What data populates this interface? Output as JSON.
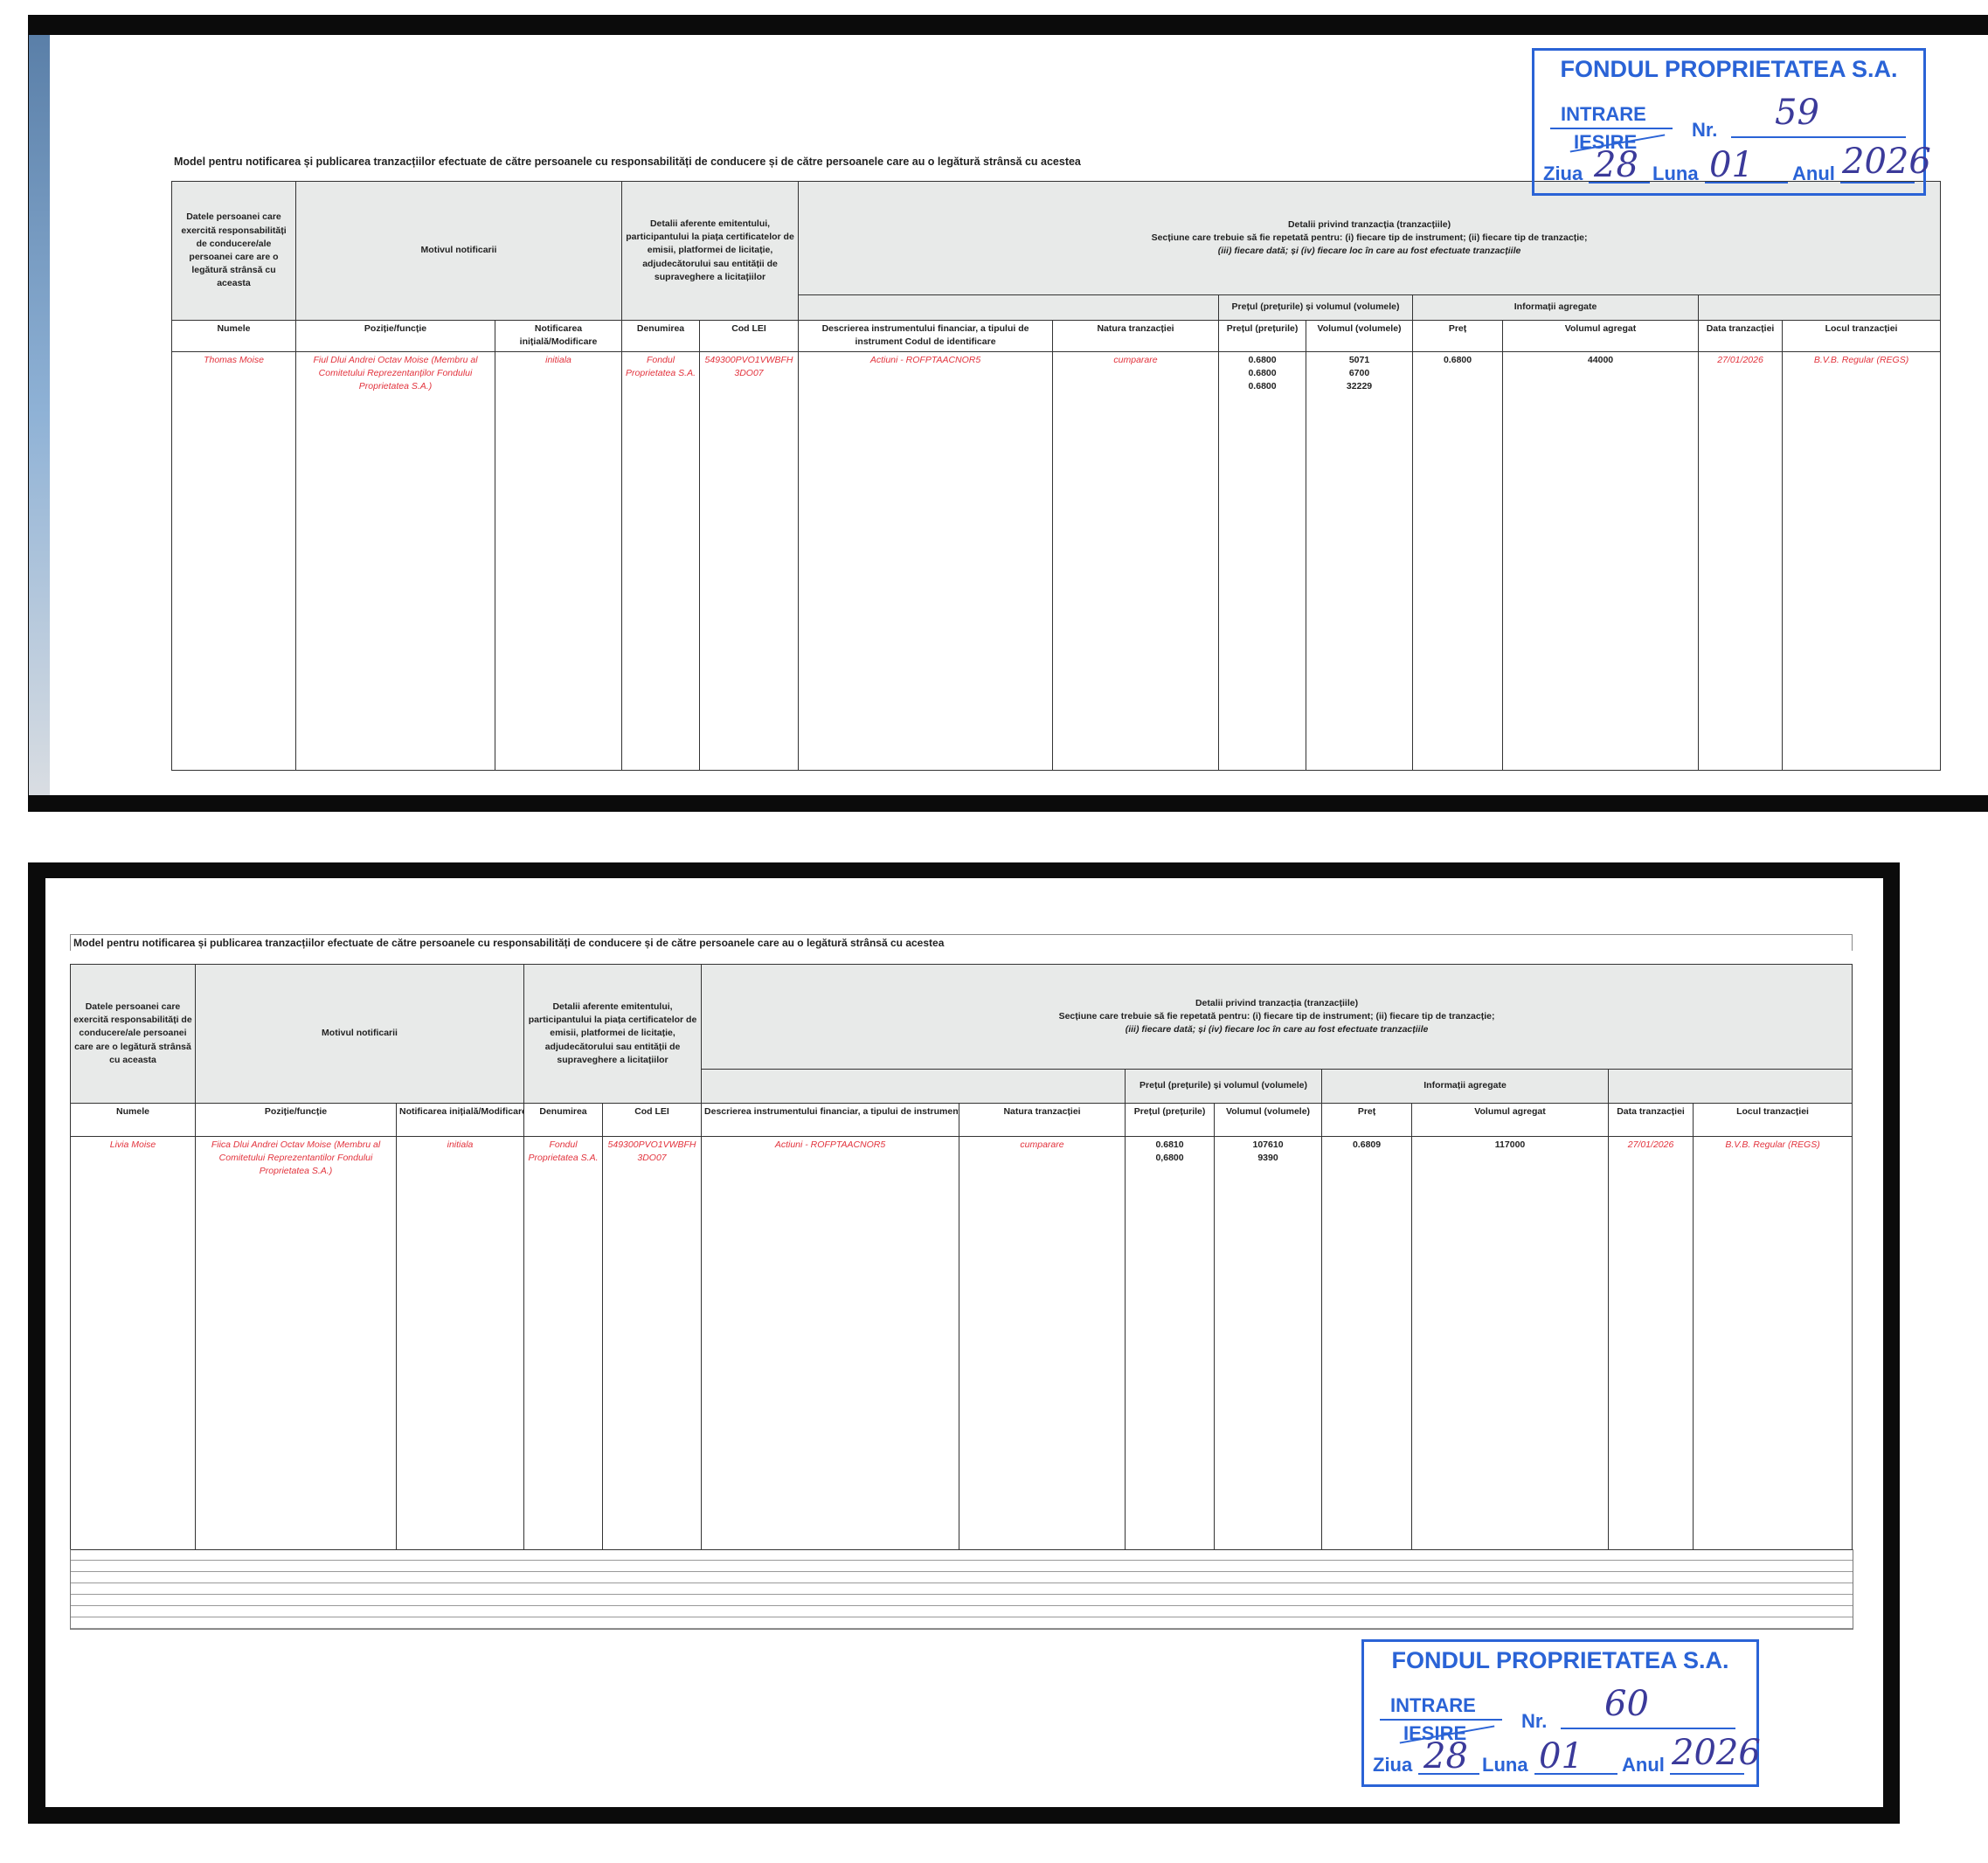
{
  "header_texts": {
    "title": "Model pentru notificarea și publicarea tranzacțiilor efectuate de către persoanele cu responsabilități de conducere și de către persoanele care au o legătură strânsă cu acestea",
    "personal": "Datele persoanei care exercită responsabilități de conducere/ale persoanei care are o legătură strânsă cu aceasta",
    "motiv": "Motivul notificarii",
    "emitent": "Detalii aferente emitentului, participantului la piața certificatelor de emisii, platformei de licitație, adjudecătorului sau entității de supraveghere a licitațiilor",
    "tranz_line1": "Detalii privind tranzacția (tranzacțiile)",
    "tranz_line2": "Secțiune care trebuie să fie repetată pentru: (i) fiecare tip de instrument; (ii) fiecare tip de tranzacție;",
    "tranz_line3": "(iii) fiecare dată; și (iv) fiecare loc în care au fost efectuate tranzacțiile",
    "pret_volum": "Prețul (prețurile) și volumul (volumele)",
    "agregate": "Informații agregate",
    "columns": [
      "Numele",
      "Poziție/funcție",
      "Notificarea inițială/Modificare",
      "Denumirea",
      "Cod LEI",
      "Descrierea instrumentului financiar, a tipului de instrument Codul de identificare",
      "Natura tranzacției",
      "Prețul (prețurile)",
      "Volumul (volumele)",
      "Preț",
      "Volumul agregat",
      "Data tranzacției",
      "Locul tranzacției"
    ]
  },
  "forms": [
    {
      "row": {
        "name": "Thomas Moise",
        "position": "Fiul Dlui Andrei Octav Moise (Membru al Comitetului Reprezentanților Fondului Proprietatea S.A.)",
        "notification": "initiala",
        "issuer": "Fondul Proprietatea S.A.",
        "lei": "549300PVO1VWBFH 3DO07",
        "instrument": "Actiuni - ROFPTAACNOR5",
        "nature": "cumparare",
        "prices": "0.6800\n0.6800\n0.6800",
        "volumes": "5071\n6700\n32229",
        "agg_price": "0.6800",
        "agg_volume": "44000",
        "date": "27/01/2026",
        "venue": "B.V.B. Regular (REGS)"
      },
      "stamp": {
        "company": "FONDUL PROPRIETATEA S.A.",
        "entry": "INTRARE",
        "exit": "IESIRE",
        "nr_label": "Nr.",
        "nr": "59",
        "day_label": "Ziua",
        "day": "28",
        "month_label": "Luna",
        "month": "01",
        "year_label": "Anul",
        "year": "2026"
      }
    },
    {
      "row": {
        "name": "Livia Moise",
        "position": "Fiica Dlui Andrei Octav Moise (Membru al Comitetului Reprezentantilor Fondului Proprietatea S.A.)",
        "notification": "initiala",
        "issuer": "Fondul Proprietatea S.A.",
        "lei": "549300PVO1VWBFH 3DO07",
        "instrument": "Actiuni - ROFPTAACNOR5",
        "nature": "cumparare",
        "prices": "0.6810\n0,6800",
        "volumes": "107610\n9390",
        "agg_price": "0.6809",
        "agg_volume": "117000",
        "date": "27/01/2026",
        "venue": "B.V.B. Regular (REGS)"
      },
      "stamp": {
        "company": "FONDUL PROPRIETATEA S.A.",
        "entry": "INTRARE",
        "exit": "IESIRE",
        "nr_label": "Nr.",
        "nr": "60",
        "day_label": "Ziua",
        "day": "28",
        "month_label": "Luna",
        "month": "01",
        "year_label": "Anul",
        "year": "2026"
      }
    }
  ],
  "colors": {
    "stamp": "#2a63d6",
    "filled_text": "#e2323c",
    "header_bg": "#e8eae9"
  }
}
